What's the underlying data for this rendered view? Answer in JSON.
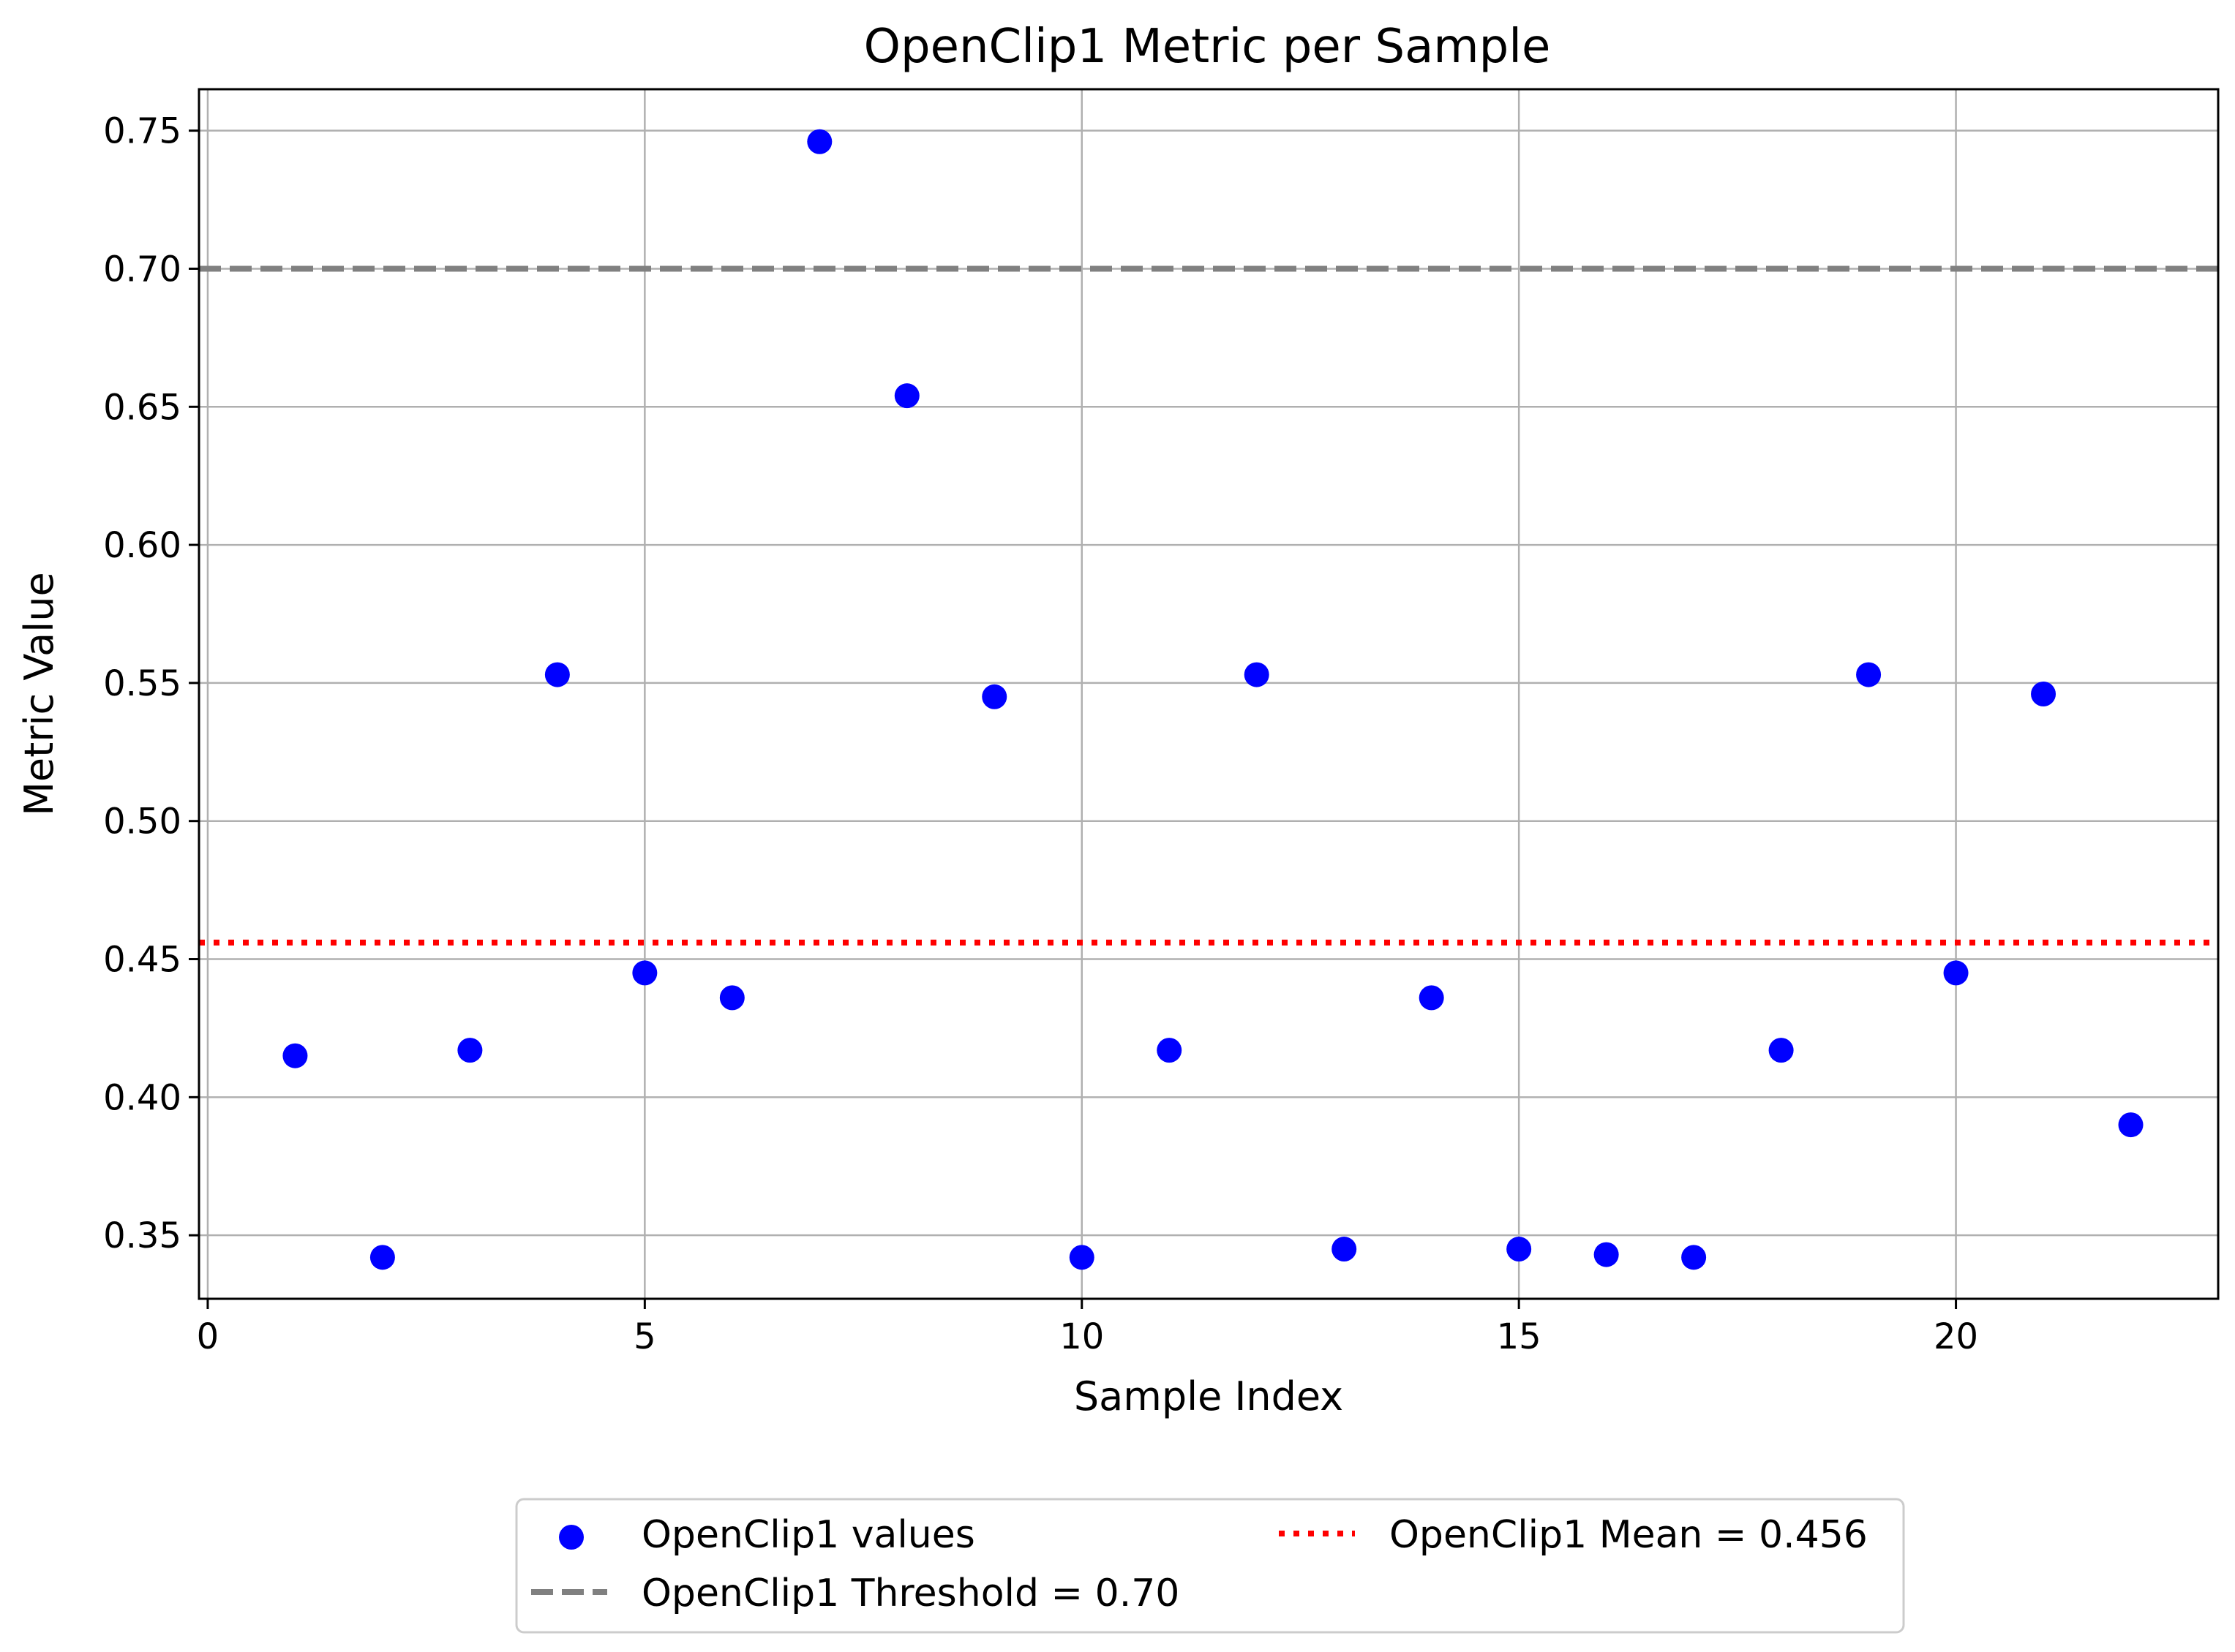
{
  "chart_data": {
    "type": "scatter",
    "title": "OpenClip1 Metric per Sample",
    "xlabel": "Sample Index",
    "ylabel": "Metric Value",
    "xlim": [
      -0.1,
      23
    ],
    "ylim": [
      0.327,
      0.765
    ],
    "x_ticks": [
      0,
      5,
      10,
      15,
      20
    ],
    "x_tick_labels": [
      "0",
      "5",
      "10",
      "15",
      "20"
    ],
    "y_ticks": [
      0.35,
      0.4,
      0.45,
      0.5,
      0.55,
      0.6,
      0.65,
      0.7,
      0.75
    ],
    "y_tick_labels": [
      "0.35",
      "0.40",
      "0.45",
      "0.50",
      "0.55",
      "0.60",
      "0.65",
      "0.70",
      "0.75"
    ],
    "grid": true,
    "legend_position": "below plot, centered",
    "series": [
      {
        "name": "OpenClip1 values",
        "color": "#0000ff",
        "x": [
          1,
          2,
          3,
          4,
          5,
          6,
          7,
          8,
          9,
          10,
          11,
          12,
          13,
          14,
          15,
          16,
          17,
          18,
          19,
          20,
          21,
          22
        ],
        "y": [
          0.415,
          0.342,
          0.417,
          0.553,
          0.445,
          0.436,
          0.746,
          0.654,
          0.545,
          0.342,
          0.417,
          0.553,
          0.345,
          0.436,
          0.345,
          0.343,
          0.342,
          0.417,
          0.553,
          0.445,
          0.546,
          0.39
        ]
      }
    ],
    "reference_lines": [
      {
        "name": "OpenClip1 Threshold = 0.70",
        "y": 0.7,
        "color": "#808080",
        "style": "dashed"
      },
      {
        "name": "OpenClip1 Mean = 0.456",
        "y": 0.456,
        "color": "#ff0000",
        "style": "dotted"
      }
    ]
  }
}
